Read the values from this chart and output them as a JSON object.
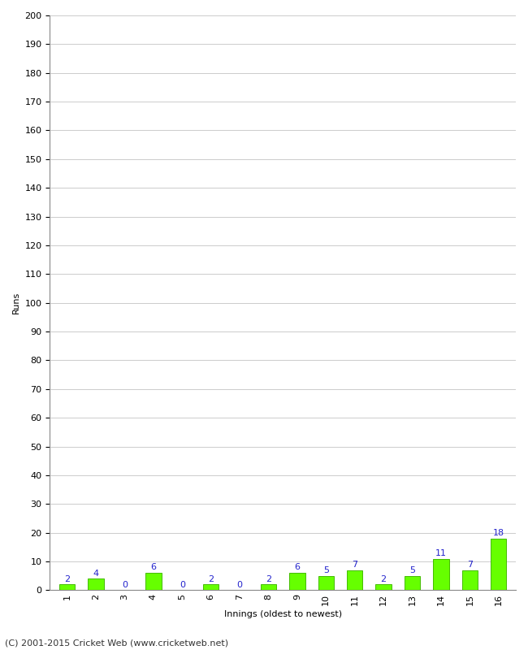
{
  "title": "",
  "xlabel": "Innings (oldest to newest)",
  "ylabel": "Runs",
  "categories": [
    "1",
    "2",
    "3",
    "4",
    "5",
    "6",
    "7",
    "8",
    "9",
    "10",
    "11",
    "12",
    "13",
    "14",
    "15",
    "16"
  ],
  "values": [
    2,
    4,
    0,
    6,
    0,
    2,
    0,
    2,
    6,
    5,
    7,
    2,
    5,
    11,
    7,
    18
  ],
  "bar_color": "#66ff00",
  "bar_edge_color": "#44bb00",
  "label_color": "#2222cc",
  "ylim": [
    0,
    200
  ],
  "yticks": [
    0,
    10,
    20,
    30,
    40,
    50,
    60,
    70,
    80,
    90,
    100,
    110,
    120,
    130,
    140,
    150,
    160,
    170,
    180,
    190,
    200
  ],
  "footer": "(C) 2001-2015 Cricket Web (www.cricketweb.net)",
  "background_color": "#ffffff",
  "plot_bg_color": "#ffffff",
  "grid_color": "#cccccc",
  "axis_color": "#888888",
  "label_fontsize": 8,
  "tick_fontsize": 8,
  "footer_fontsize": 8,
  "value_fontsize": 8
}
